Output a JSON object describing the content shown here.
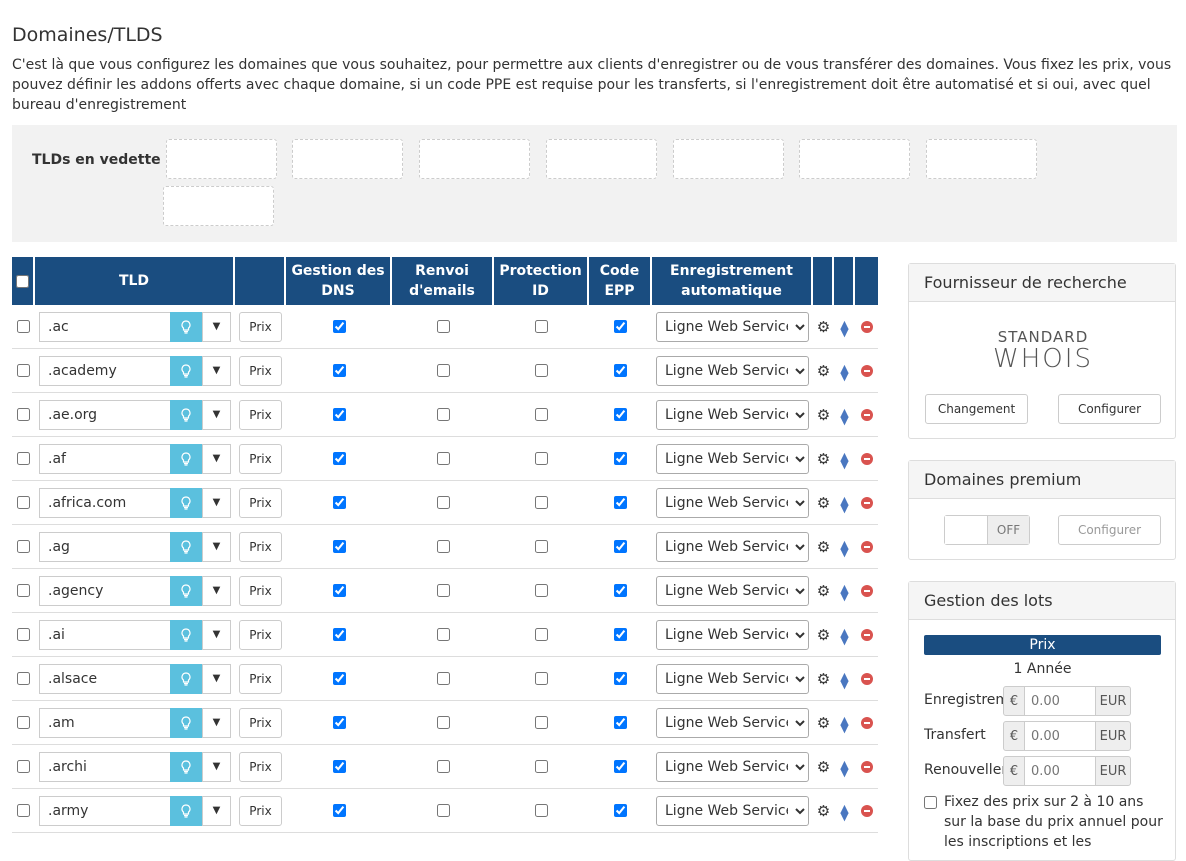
{
  "page_title": "Domaines/TLDS",
  "intro": "C'est là que vous configurez les domaines que vous souhaitez, pour permettre aux clients d'enregistrer ou de vous transférer des domaines. Vous fixez les prix, vous pouvez définir les addons offerts avec chaque domaine, si un code PPE est requise pour les transferts, si l'enregistrement doit être automatisé et si oui, avec quel bureau d'enregistrement",
  "featured": {
    "label": "TLDs en vedette",
    "icon": "lightbulb-icon"
  },
  "table": {
    "headers": {
      "tld": "TLD",
      "dns_line1": "Gestion des",
      "dns_line2": "DNS",
      "email_line1": "Renvoi",
      "email_line2": "d'emails",
      "idp_line1": "Protection",
      "idp_line2": "ID",
      "epp_line1": "Code",
      "epp_line2": "EPP",
      "auto_line1": "Enregistrement",
      "auto_line2": "automatique"
    },
    "price_label": "Prix",
    "rows": [
      {
        "tld": ".ac",
        "dns": true,
        "email": false,
        "idp": false,
        "epp": true,
        "registrar": "Ligne Web Services"
      },
      {
        "tld": ".academy",
        "dns": true,
        "email": false,
        "idp": false,
        "epp": true,
        "registrar": "Ligne Web Services"
      },
      {
        "tld": ".ae.org",
        "dns": true,
        "email": false,
        "idp": false,
        "epp": true,
        "registrar": "Ligne Web Services"
      },
      {
        "tld": ".af",
        "dns": true,
        "email": false,
        "idp": false,
        "epp": true,
        "registrar": "Ligne Web Services"
      },
      {
        "tld": ".africa.com",
        "dns": true,
        "email": false,
        "idp": false,
        "epp": true,
        "registrar": "Ligne Web Services"
      },
      {
        "tld": ".ag",
        "dns": true,
        "email": false,
        "idp": false,
        "epp": true,
        "registrar": "Ligne Web Services"
      },
      {
        "tld": ".agency",
        "dns": true,
        "email": false,
        "idp": false,
        "epp": true,
        "registrar": "Ligne Web Services"
      },
      {
        "tld": ".ai",
        "dns": true,
        "email": false,
        "idp": false,
        "epp": true,
        "registrar": "Ligne Web Services"
      },
      {
        "tld": ".alsace",
        "dns": true,
        "email": false,
        "idp": false,
        "epp": true,
        "registrar": "Ligne Web Services"
      },
      {
        "tld": ".am",
        "dns": true,
        "email": false,
        "idp": false,
        "epp": true,
        "registrar": "Ligne Web Services"
      },
      {
        "tld": ".archi",
        "dns": true,
        "email": false,
        "idp": false,
        "epp": true,
        "registrar": "Ligne Web Services"
      },
      {
        "tld": ".army",
        "dns": true,
        "email": false,
        "idp": false,
        "epp": true,
        "registrar": "Ligne Web Services"
      }
    ]
  },
  "lookup_panel": {
    "title": "Fournisseur de recherche",
    "logo_line1": "STANDARD",
    "logo_line2": "WHOIS",
    "change_label": "Changement",
    "configure_label": "Configurer"
  },
  "premium_panel": {
    "title": "Domaines premium",
    "toggle_state": "OFF",
    "configure_label": "Configurer"
  },
  "bulk_panel": {
    "title": "Gestion des lots",
    "price_header": "Prix",
    "period": "1 Année",
    "rows": [
      {
        "label": "Enregistrement",
        "currency_symbol": "€",
        "placeholder": "0.00",
        "currency": "EUR"
      },
      {
        "label": "Transfert",
        "currency_symbol": "€",
        "placeholder": "0.00",
        "currency": "EUR"
      },
      {
        "label": "Renouvellement",
        "currency_symbol": "€",
        "placeholder": "0.00",
        "currency": "EUR"
      }
    ],
    "multi_year_text": "Fixez des prix sur 2 à 10 ans sur la base du prix annuel pour les inscriptions et les"
  },
  "colors": {
    "header_bg": "#1a4d80",
    "accent_info": "#5bc0de",
    "danger": "#d9534f"
  }
}
